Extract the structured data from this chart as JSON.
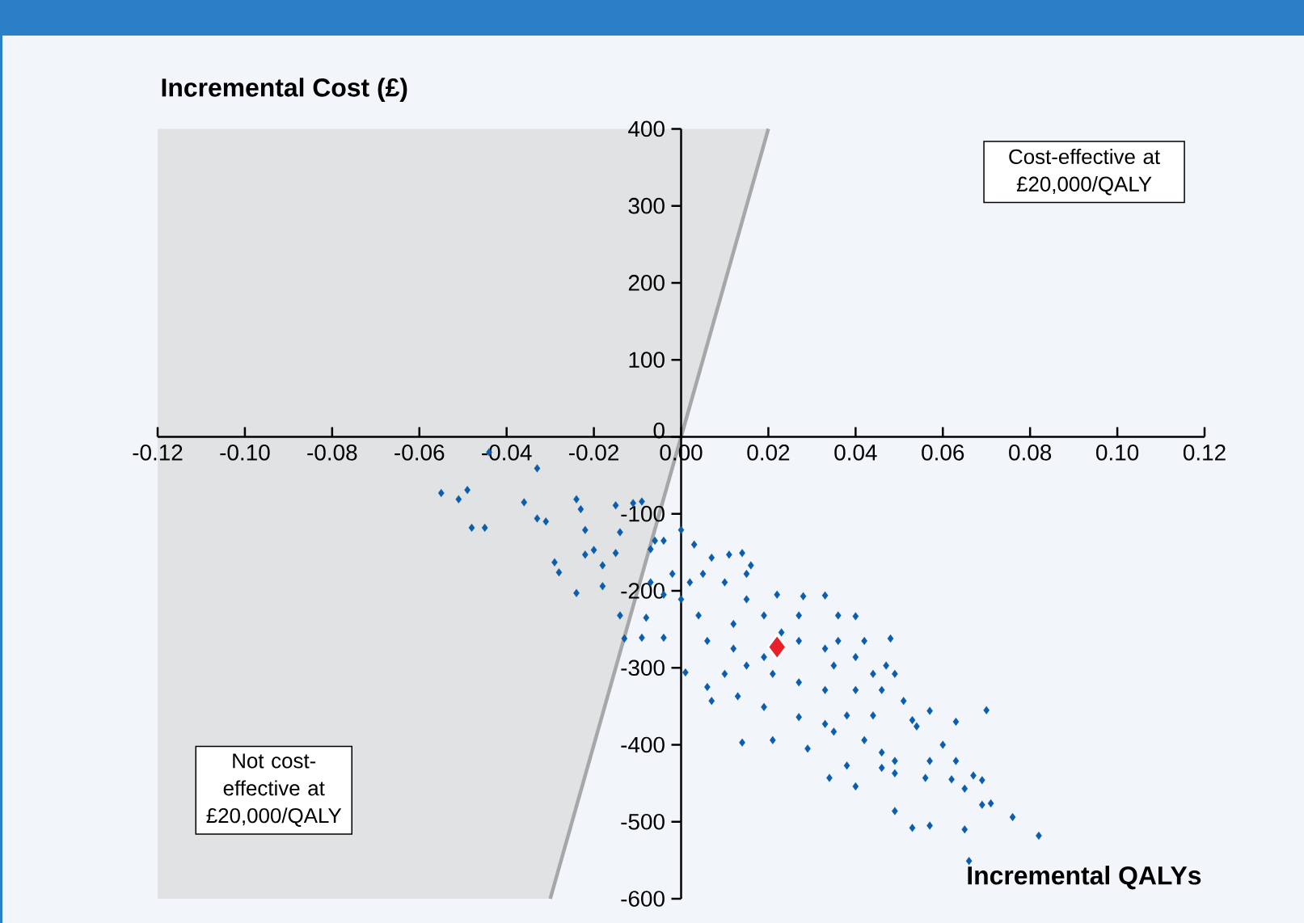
{
  "chart_data": {
    "type": "scatter",
    "xlabel": "Incremental QALYs",
    "ylabel": "Incremental Cost (£)",
    "xlim": [
      -0.12,
      0.12
    ],
    "ylim": [
      -600,
      400
    ],
    "xticks": [
      {
        "value": -0.12,
        "label": "-0.12"
      },
      {
        "value": -0.1,
        "label": "-0.10"
      },
      {
        "value": -0.08,
        "label": "-0.08"
      },
      {
        "value": -0.06,
        "label": "-0.06"
      },
      {
        "value": -0.04,
        "label": "-0.04"
      },
      {
        "value": -0.02,
        "label": "-0.02"
      },
      {
        "value": 0,
        "label": "0.00"
      },
      {
        "value": 0.02,
        "label": "0.02"
      },
      {
        "value": 0.04,
        "label": "0.04"
      },
      {
        "value": 0.06,
        "label": "0.06"
      },
      {
        "value": 0.08,
        "label": "0.08"
      },
      {
        "value": 0.1,
        "label": "0.10"
      },
      {
        "value": 0.12,
        "label": "0.12"
      }
    ],
    "yticks": [
      -600,
      -500,
      -400,
      -300,
      -200,
      -100,
      0,
      100,
      200,
      300,
      400
    ],
    "annotations": [
      "Cost-effective at £20,000/QALY",
      "Not cost-effective at £20,000/QALY"
    ],
    "series": [
      {
        "type": "line",
        "color": "#a6a7a9",
        "x": [
          -0.03,
          0.02
        ],
        "values": [
          -600,
          400
        ]
      },
      {
        "color": "#0b5ead",
        "marker": "diamond",
        "x": [
          -0.044,
          -0.033,
          -0.055,
          -0.051,
          -0.049,
          -0.048,
          -0.045,
          -0.036,
          -0.033,
          -0.031,
          -0.024,
          -0.023,
          -0.022,
          -0.029,
          -0.028,
          -0.024,
          -0.022,
          -0.02,
          -0.015,
          -0.011,
          -0.009,
          -0.014,
          -0.015,
          -0.018,
          -0.018,
          -0.014,
          -0.013,
          -0.008,
          -0.009,
          -0.004,
          -0.007,
          -0.006,
          0.0,
          0.001,
          0.003,
          0.007,
          0.011,
          0.014,
          0.016,
          0.01,
          0.015,
          0.022,
          0.028,
          0.033,
          0.036,
          0.04,
          0.048,
          0.027,
          0.019,
          0.012,
          0.004,
          0.006,
          0.012,
          0.019,
          0.027,
          0.033,
          0.035,
          0.04,
          0.044,
          0.046,
          0.049,
          0.04,
          0.033,
          0.027,
          0.021,
          0.015,
          0.01,
          0.006,
          0.007,
          0.013,
          0.019,
          0.027,
          0.033,
          0.038,
          0.044,
          0.051,
          0.053,
          0.057,
          0.063,
          0.07,
          0.054,
          0.06,
          0.035,
          0.029,
          0.021,
          0.014,
          0.042,
          0.046,
          0.049,
          0.046,
          0.038,
          0.034,
          0.04,
          0.049,
          0.056,
          0.057,
          0.063,
          0.062,
          0.065,
          0.067,
          0.069,
          0.049,
          0.053,
          0.057,
          0.065,
          0.069,
          0.071,
          0.076,
          0.082,
          0.066,
          -0.004,
          -0.002,
          0.002,
          0.0,
          -0.004,
          -0.007,
          0.005,
          0.015,
          0.023,
          0.036,
          0.042,
          0.047
        ],
        "values": [
          -20,
          -41,
          -73,
          -81,
          -69,
          -118,
          -118,
          -85,
          -106,
          -110,
          -81,
          -94,
          -121,
          -163,
          -176,
          -203,
          -153,
          -147,
          -89,
          -86,
          -84,
          -124,
          -151,
          -167,
          -194,
          -232,
          -262,
          -235,
          -261,
          -261,
          -146,
          -135,
          -121,
          -306,
          -140,
          -157,
          -153,
          -151,
          -167,
          -189,
          -211,
          -205,
          -207,
          -206,
          -232,
          -233,
          -262,
          -232,
          -232,
          -243,
          -232,
          -265,
          -275,
          -286,
          -265,
          -275,
          -297,
          -286,
          -308,
          -329,
          -308,
          -329,
          -329,
          -319,
          -308,
          -297,
          -308,
          -325,
          -343,
          -337,
          -351,
          -364,
          -373,
          -362,
          -362,
          -343,
          -368,
          -356,
          -370,
          -355,
          -376,
          -400,
          -383,
          -405,
          -394,
          -397,
          -394,
          -410,
          -421,
          -430,
          -427,
          -443,
          -454,
          -437,
          -443,
          -421,
          -421,
          -445,
          -457,
          -440,
          -446,
          -486,
          -508,
          -505,
          -510,
          -478,
          -476,
          -494,
          -518,
          -551,
          -135,
          -178,
          -189,
          -211,
          -205,
          -189,
          -178,
          -178,
          -254,
          -265,
          -265,
          -297
        ]
      },
      {
        "color": "#e8202a",
        "marker": "diamond",
        "x": [
          0.022
        ],
        "values": [
          -273
        ]
      }
    ]
  }
}
